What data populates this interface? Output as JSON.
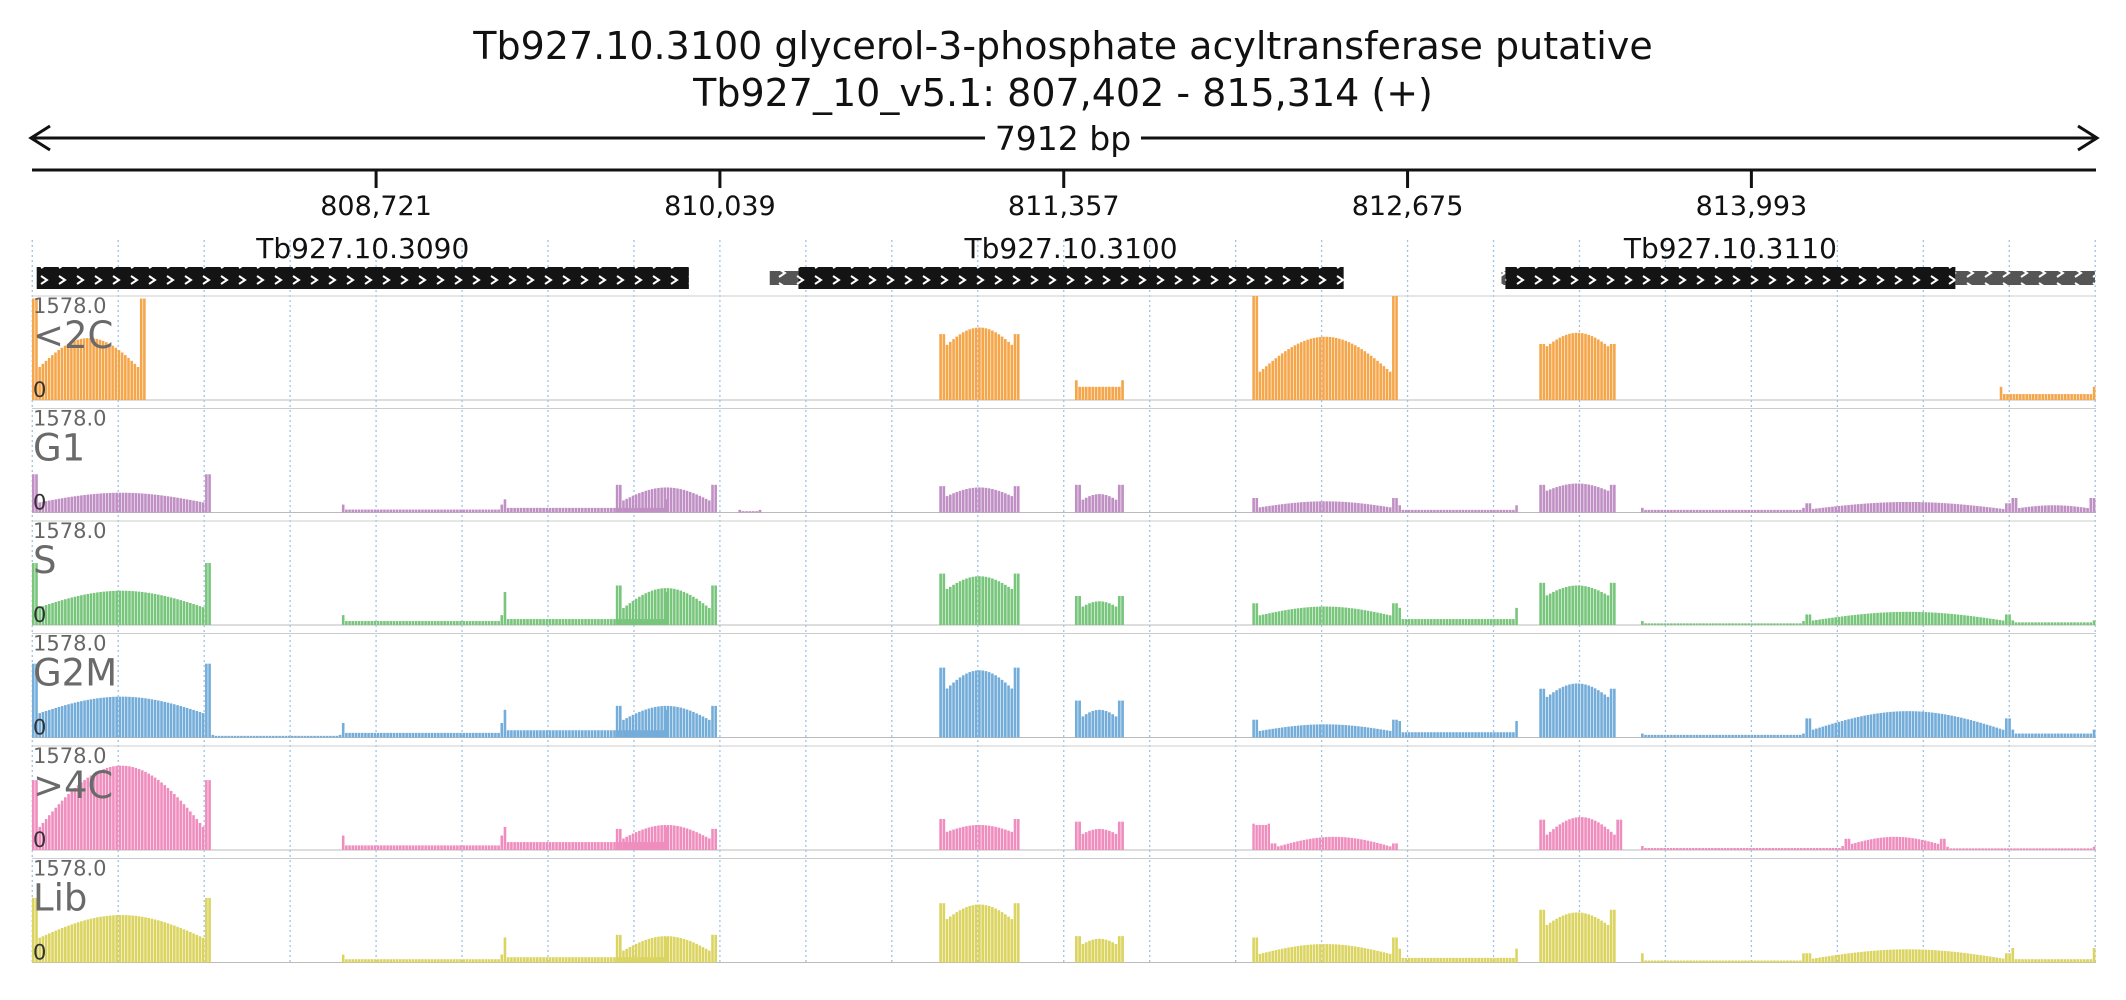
{
  "chart_data": {
    "type": "bar",
    "title": "Tb927.10.3100  glycerol-3-phosphate acyltransferase  putative",
    "subtitle": "Tb927_10_v5.1: 807,402 - 815,314 (+)",
    "span_label": "7912 bp",
    "x_range": [
      807402,
      815314
    ],
    "x_ticks": [
      808721,
      810039,
      811357,
      812675,
      813993
    ],
    "x_tick_labels": [
      "808,721",
      "810,039",
      "811,357",
      "812,675",
      "813,993"
    ],
    "ylim": [
      0,
      1578.0
    ],
    "y_max_label": "1578.0",
    "y_min_label": "0",
    "genes": [
      {
        "name": "Tb927.10.3090",
        "utr5": null,
        "cds": [
          807420,
          809920
        ],
        "utr3": null
      },
      {
        "name": "Tb927.10.3100",
        "utr5": [
          810230,
          810340
        ],
        "cds": [
          810340,
          812430
        ],
        "utr3": null
      },
      {
        "name": "Tb927.10.3110",
        "utr5": [
          813035,
          813050
        ],
        "cds": [
          813050,
          814775
        ],
        "utr3": [
          814775,
          815310
        ]
      }
    ],
    "series": [
      {
        "name": "<2C",
        "color": "#f5a64a",
        "segments": [
          {
            "type": "hump",
            "x": [
              807402,
              807840
            ],
            "base": 380,
            "peak": 940,
            "edge_high": 1540
          },
          {
            "type": "hump",
            "x": [
              810880,
              811190
            ],
            "base": 720,
            "peak": 1100,
            "edge_high": 1000
          },
          {
            "type": "flat",
            "x": [
              811400,
              811590
            ],
            "base": 200,
            "edge_high": 300
          },
          {
            "type": "hump",
            "x": [
              812080,
              812640
            ],
            "base": 320,
            "peak": 960,
            "edge_high": 1578
          },
          {
            "type": "hump",
            "x": [
              813180,
              813475
            ],
            "base": 720,
            "peak": 1020,
            "edge_high": 850
          },
          {
            "type": "flat",
            "x": [
              814945,
              815314
            ],
            "base": 90,
            "edge_high": 200
          }
        ]
      },
      {
        "name": "G1",
        "color": "#c08fc4",
        "segments": [
          {
            "type": "hump",
            "x": [
              807402,
              808090
            ],
            "base": 130,
            "peak": 300,
            "edge_high": 580
          },
          {
            "type": "flat",
            "x": [
              808590,
              809210
            ],
            "base": 45,
            "edge_high": 120
          },
          {
            "type": "flat",
            "x": [
              809210,
              809840
            ],
            "base": 70,
            "edge_high": 200
          },
          {
            "type": "hump",
            "x": [
              809640,
              810030
            ],
            "base": 120,
            "peak": 380,
            "edge_high": 420
          },
          {
            "type": "flat",
            "x": [
              810110,
              810200
            ],
            "base": 20,
            "edge_high": 40
          },
          {
            "type": "hump",
            "x": [
              810880,
              811190
            ],
            "base": 190,
            "peak": 380,
            "edge_high": 400
          },
          {
            "type": "hump",
            "x": [
              811400,
              811590
            ],
            "base": 110,
            "peak": 280,
            "edge_high": 420
          },
          {
            "type": "hump",
            "x": [
              812080,
              812640
            ],
            "base": 60,
            "peak": 170,
            "edge_high": 220
          },
          {
            "type": "flat",
            "x": [
              812640,
              813100
            ],
            "base": 40,
            "edge_high": 110
          },
          {
            "type": "hump",
            "x": [
              813180,
              813475
            ],
            "base": 280,
            "peak": 440,
            "edge_high": 420
          },
          {
            "type": "flat",
            "x": [
              813570,
              814200
            ],
            "base": 40,
            "edge_high": 70
          },
          {
            "type": "hump",
            "x": [
              814200,
              814990
            ],
            "base": 40,
            "peak": 160,
            "edge_high": 140
          },
          {
            "type": "hump",
            "x": [
              814990,
              815314
            ],
            "base": 50,
            "peak": 110,
            "edge_high": 220
          }
        ]
      },
      {
        "name": "S",
        "color": "#78c57c",
        "segments": [
          {
            "type": "hump",
            "x": [
              807402,
              808090
            ],
            "base": 230,
            "peak": 520,
            "edge_high": 940
          },
          {
            "type": "flat",
            "x": [
              808590,
              809210
            ],
            "base": 60,
            "edge_high": 150
          },
          {
            "type": "flat",
            "x": [
              809210,
              809840
            ],
            "base": 90,
            "edge_high": 500
          },
          {
            "type": "hump",
            "x": [
              809640,
              810030
            ],
            "base": 160,
            "peak": 560,
            "edge_high": 600
          },
          {
            "type": "hump",
            "x": [
              810880,
              811190
            ],
            "base": 460,
            "peak": 740,
            "edge_high": 780
          },
          {
            "type": "hump",
            "x": [
              811400,
              811590
            ],
            "base": 200,
            "peak": 360,
            "edge_high": 440
          },
          {
            "type": "hump",
            "x": [
              812080,
              812640
            ],
            "base": 120,
            "peak": 280,
            "edge_high": 330
          },
          {
            "type": "flat",
            "x": [
              812640,
              813100
            ],
            "base": 90,
            "edge_high": 260
          },
          {
            "type": "hump",
            "x": [
              813180,
              813475
            ],
            "base": 380,
            "peak": 600,
            "edge_high": 640
          },
          {
            "type": "flat",
            "x": [
              813570,
              814200
            ],
            "base": 25,
            "edge_high": 60
          },
          {
            "type": "hump",
            "x": [
              814200,
              814990
            ],
            "base": 50,
            "peak": 200,
            "edge_high": 160
          },
          {
            "type": "flat",
            "x": [
              814990,
              815314
            ],
            "base": 40,
            "edge_high": 70
          }
        ]
      },
      {
        "name": "G2M",
        "color": "#74add9",
        "segments": [
          {
            "type": "hump",
            "x": [
              807402,
              808090
            ],
            "base": 330,
            "peak": 620,
            "edge_high": 1120
          },
          {
            "type": "flat",
            "x": [
              808090,
              808590
            ],
            "base": 25,
            "edge_high": 40
          },
          {
            "type": "flat",
            "x": [
              808590,
              809210
            ],
            "base": 70,
            "edge_high": 220
          },
          {
            "type": "flat",
            "x": [
              809210,
              809840
            ],
            "base": 110,
            "edge_high": 420
          },
          {
            "type": "hump",
            "x": [
              809640,
              810030
            ],
            "base": 200,
            "peak": 480,
            "edge_high": 480
          },
          {
            "type": "hump",
            "x": [
              810880,
              811190
            ],
            "base": 620,
            "peak": 1020,
            "edge_high": 1060
          },
          {
            "type": "hump",
            "x": [
              811400,
              811590
            ],
            "base": 220,
            "peak": 420,
            "edge_high": 560
          },
          {
            "type": "hump",
            "x": [
              812080,
              812640
            ],
            "base": 80,
            "peak": 200,
            "edge_high": 270
          },
          {
            "type": "flat",
            "x": [
              812640,
              813100
            ],
            "base": 80,
            "edge_high": 250
          },
          {
            "type": "hump",
            "x": [
              813180,
              813475
            ],
            "base": 520,
            "peak": 820,
            "edge_high": 740
          },
          {
            "type": "flat",
            "x": [
              813570,
              814200
            ],
            "base": 40,
            "edge_high": 60
          },
          {
            "type": "hump",
            "x": [
              814200,
              814990
            ],
            "base": 80,
            "peak": 400,
            "edge_high": 290
          },
          {
            "type": "flat",
            "x": [
              814990,
              815314
            ],
            "base": 60,
            "edge_high": 120
          }
        ]
      },
      {
        "name": ">4C",
        "color": "#ef8dbe",
        "segments": [
          {
            "type": "hump",
            "x": [
              807402,
              808090
            ],
            "base": 200,
            "peak": 1280,
            "edge_high": 1060
          },
          {
            "type": "flat",
            "x": [
              808590,
              809210
            ],
            "base": 70,
            "edge_high": 220
          },
          {
            "type": "flat",
            "x": [
              809210,
              809840
            ],
            "base": 120,
            "edge_high": 350
          },
          {
            "type": "hump",
            "x": [
              809640,
              810030
            ],
            "base": 110,
            "peak": 380,
            "edge_high": 320
          },
          {
            "type": "hump",
            "x": [
              810880,
              811190
            ],
            "base": 230,
            "peak": 380,
            "edge_high": 470
          },
          {
            "type": "hump",
            "x": [
              811400,
              811590
            ],
            "base": 170,
            "peak": 320,
            "edge_high": 430
          },
          {
            "type": "flat",
            "x": [
              812080,
              812150
            ],
            "base": 380,
            "edge_high": 400
          },
          {
            "type": "hump",
            "x": [
              812150,
              812640
            ],
            "base": 20,
            "peak": 200,
            "edge_high": 100
          },
          {
            "type": "hump",
            "x": [
              813180,
              813500
            ],
            "base": 120,
            "peak": 500,
            "edge_high": 460
          },
          {
            "type": "flat",
            "x": [
              813570,
              814350
            ],
            "base": 30,
            "edge_high": 60
          },
          {
            "type": "hump",
            "x": [
              814350,
              814740
            ],
            "base": 60,
            "peak": 200,
            "edge_high": 170
          },
          {
            "type": "flat",
            "x": [
              814740,
              815314
            ],
            "base": 25,
            "edge_high": 50
          }
        ]
      },
      {
        "name": "Lib",
        "color": "#dbd461",
        "segments": [
          {
            "type": "hump",
            "x": [
              807402,
              808090
            ],
            "base": 320,
            "peak": 720,
            "edge_high": 980
          },
          {
            "type": "flat",
            "x": [
              808590,
              809210
            ],
            "base": 50,
            "edge_high": 120
          },
          {
            "type": "flat",
            "x": [
              809210,
              809840
            ],
            "base": 80,
            "edge_high": 380
          },
          {
            "type": "hump",
            "x": [
              809640,
              810030
            ],
            "base": 110,
            "peak": 400,
            "edge_high": 420
          },
          {
            "type": "hump",
            "x": [
              810880,
              811190
            ],
            "base": 560,
            "peak": 880,
            "edge_high": 900
          },
          {
            "type": "hump",
            "x": [
              811400,
              811590
            ],
            "base": 200,
            "peak": 360,
            "edge_high": 400
          },
          {
            "type": "hump",
            "x": [
              812080,
              812640
            ],
            "base": 100,
            "peak": 280,
            "edge_high": 380
          },
          {
            "type": "flat",
            "x": [
              812640,
              813100
            ],
            "base": 70,
            "edge_high": 210
          },
          {
            "type": "hump",
            "x": [
              813180,
              813475
            ],
            "base": 480,
            "peak": 760,
            "edge_high": 800
          },
          {
            "type": "flat",
            "x": [
              813570,
              814200
            ],
            "base": 30,
            "edge_high": 140
          },
          {
            "type": "hump",
            "x": [
              814200,
              814990
            ],
            "base": 40,
            "peak": 200,
            "edge_high": 140
          },
          {
            "type": "flat",
            "x": [
              814990,
              815314
            ],
            "base": 50,
            "edge_high": 220
          }
        ]
      }
    ]
  }
}
